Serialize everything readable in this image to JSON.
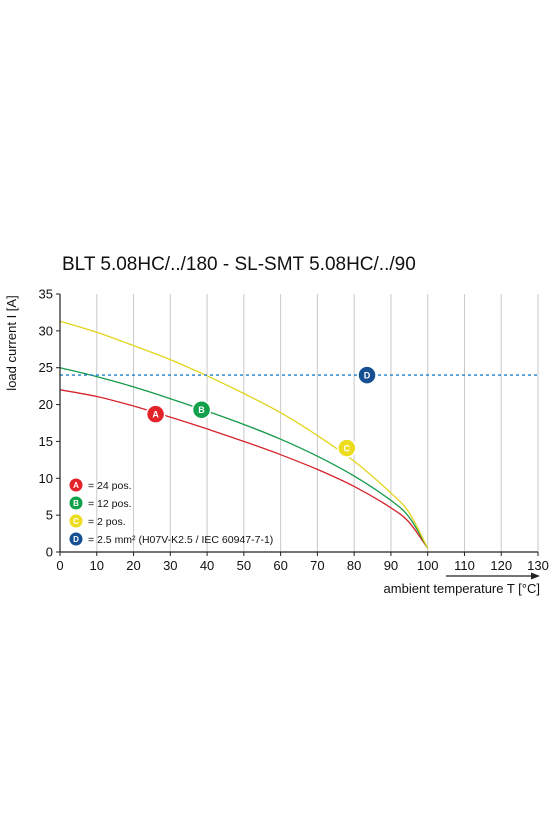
{
  "chart_data": {
    "type": "line",
    "title": "BLT 5.08HC/../180 - SL-SMT 5.08HC/../90",
    "xlabel": "ambient temperature T [°C]",
    "ylabel": "load current I [A]",
    "xlim": [
      0,
      130
    ],
    "ylim": [
      0,
      35
    ],
    "xticks": [
      0,
      10,
      20,
      30,
      40,
      50,
      60,
      70,
      80,
      90,
      100,
      110,
      120,
      130
    ],
    "yticks": [
      0,
      5,
      10,
      15,
      20,
      25,
      30,
      35
    ],
    "grid": true,
    "series": [
      {
        "name": "A",
        "color": "#d7242d",
        "x": [
          0,
          10,
          20,
          30,
          40,
          50,
          60,
          70,
          80,
          90,
          95,
          100
        ],
        "y": [
          22,
          21.1,
          19.8,
          18.3,
          16.7,
          15.0,
          13.2,
          11.2,
          8.9,
          6.0,
          4.0,
          0.5
        ],
        "marker": {
          "x": 26,
          "y": 18.7
        }
      },
      {
        "name": "B",
        "color": "#159a4a",
        "x": [
          0,
          10,
          20,
          30,
          40,
          50,
          60,
          70,
          80,
          90,
          95,
          100
        ],
        "y": [
          25,
          23.8,
          22.4,
          20.8,
          19.1,
          17.3,
          15.3,
          13.0,
          10.3,
          7.0,
          4.7,
          0.5
        ],
        "marker": {
          "x": 38.5,
          "y": 19.3
        }
      },
      {
        "name": "C",
        "color": "#e2d41c",
        "x": [
          0,
          10,
          20,
          30,
          40,
          50,
          60,
          70,
          80,
          90,
          95,
          100
        ],
        "y": [
          31.3,
          29.8,
          28.0,
          26.1,
          23.9,
          21.5,
          18.9,
          15.8,
          12.3,
          8.0,
          5.3,
          0.5
        ],
        "marker": {
          "x": 78,
          "y": 14.1
        }
      },
      {
        "name": "D",
        "color": "#1f7fc6",
        "dashed": true,
        "x": [
          0,
          130
        ],
        "y": [
          24,
          24
        ],
        "marker": {
          "x": 83.5,
          "y": 24
        }
      }
    ],
    "marker_colors": {
      "A": "#e2232a",
      "B": "#13a04a",
      "C": "#ecdc1e",
      "D": "#174f93"
    },
    "legend": {
      "placement": "bottom-left",
      "entries": [
        {
          "badge": "A",
          "text": "= 24 pos."
        },
        {
          "badge": "B",
          "text": "= 12 pos."
        },
        {
          "badge": "C",
          "text": "= 2 pos."
        },
        {
          "badge": "D",
          "text": "= 2.5 mm² (H07V-K2.5 / IEC 60947-7-1)"
        }
      ]
    }
  }
}
